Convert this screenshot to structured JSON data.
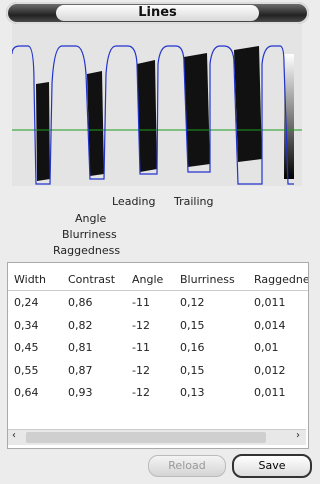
{
  "header": {
    "title": "Lines"
  },
  "labels": {
    "leading": "Leading",
    "trailing": "Trailing",
    "angle": "Angle",
    "blurriness": "Blurriness",
    "raggedness": "Raggedness"
  },
  "table": {
    "columns": [
      "Width",
      "Contrast",
      "Angle",
      "Blurriness",
      "Raggedness"
    ],
    "rows": [
      [
        "0,24",
        "0,86",
        "-11",
        "0,12",
        "0,011"
      ],
      [
        "0,34",
        "0,82",
        "-12",
        "0,15",
        "0,014"
      ],
      [
        "0,45",
        "0,81",
        "-11",
        "0,16",
        "0,01"
      ],
      [
        "0,55",
        "0,87",
        "-12",
        "0,15",
        "0,012"
      ],
      [
        "0,64",
        "0,93",
        "-12",
        "0,13",
        "0,011"
      ]
    ]
  },
  "buttons": {
    "reload": "Reload",
    "save": "Save"
  }
}
